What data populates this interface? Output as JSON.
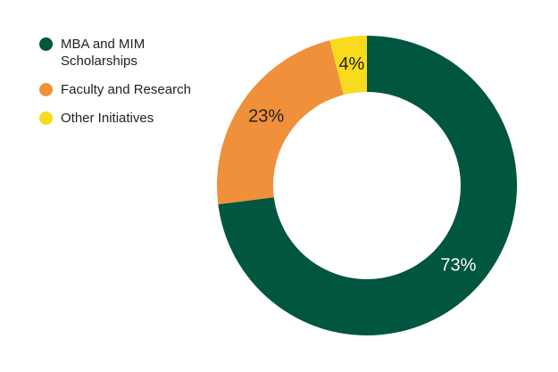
{
  "chart_data": {
    "type": "donut",
    "categories": [
      "MBA and MIM Scholarships",
      "Faculty and Research",
      "Other Initiatives"
    ],
    "values": [
      73,
      23,
      4
    ],
    "value_labels": [
      "73%",
      "23%",
      "4%"
    ],
    "colors": [
      "#00563f",
      "#f0903a",
      "#f9da1c"
    ],
    "legend": "top-left"
  }
}
